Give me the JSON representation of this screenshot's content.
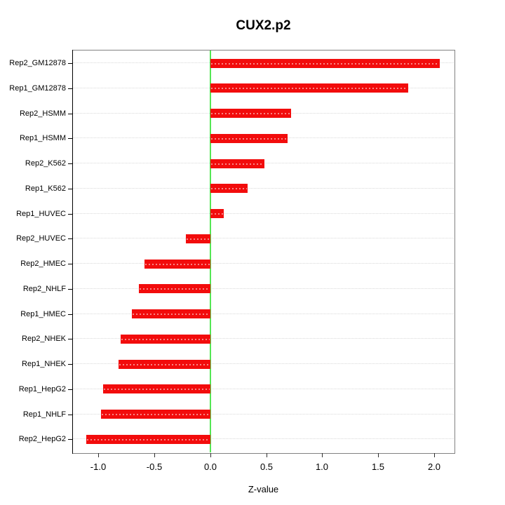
{
  "title": "CUX2.p2",
  "x_axis_title": "Z-value",
  "chart_data": {
    "type": "bar",
    "orientation": "horizontal",
    "title": "CUX2.p2",
    "xlabel": "Z-value",
    "ylabel": "",
    "categories": [
      "Rep2_GM12878",
      "Rep1_GM12878",
      "Rep2_HSMM",
      "Rep1_HSMM",
      "Rep2_K562",
      "Rep1_K562",
      "Rep1_HUVEC",
      "Rep2_HUVEC",
      "Rep2_HMEC",
      "Rep2_NHLF",
      "Rep1_HMEC",
      "Rep2_NHEK",
      "Rep1_NHEK",
      "Rep1_HepG2",
      "Rep1_NHLF",
      "Rep2_HepG2"
    ],
    "values": [
      2.05,
      1.77,
      0.72,
      0.69,
      0.48,
      0.33,
      0.12,
      -0.22,
      -0.59,
      -0.64,
      -0.7,
      -0.8,
      -0.82,
      -0.96,
      -0.98,
      -1.11
    ],
    "xlim": [
      -1.235,
      2.182
    ],
    "x_ticks": [
      -1.0,
      -0.5,
      0.0,
      0.5,
      1.0,
      1.5,
      2.0
    ],
    "x_tick_labels": [
      "-1.0",
      "-0.5",
      "0.0",
      "0.5",
      "1.0",
      "1.5",
      "2.0"
    ],
    "grid": true,
    "gridline_style": "dotted",
    "legend_position": "none",
    "colors": {
      "bar": "#f20c0c",
      "bar_dash_overlay": "#ff9999",
      "zero_line": "#55e655",
      "gridline": "#d9d9d9",
      "box": "#828282",
      "text": "#000000"
    }
  }
}
